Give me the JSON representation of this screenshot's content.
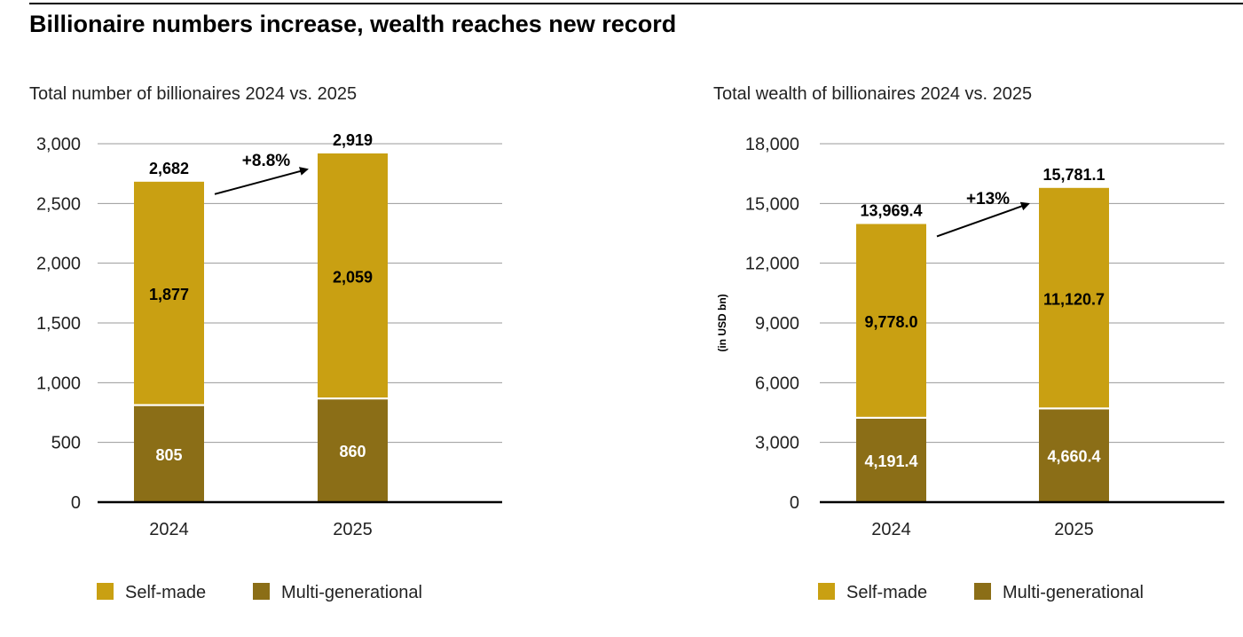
{
  "title": "Billionaire numbers increase, wealth reaches new record",
  "colors": {
    "self_made": "#C9A012",
    "multi_generational": "#8B6E17",
    "grid": "#9a9a9a"
  },
  "chart_data": [
    {
      "type": "bar",
      "stacked": true,
      "title": "Total number of billionaires 2024 vs. 2025",
      "xlabel": "",
      "ylabel": "",
      "categories": [
        "2024",
        "2025"
      ],
      "ylim": [
        0,
        3000
      ],
      "yticks": [
        0,
        500,
        1000,
        1500,
        2000,
        2500,
        3000
      ],
      "ytick_labels": [
        "0",
        "500",
        "1,000",
        "1,500",
        "2,000",
        "2,500",
        "3,000"
      ],
      "series": [
        {
          "name": "Multi-generational",
          "values": [
            805,
            860
          ],
          "labels": [
            "805",
            "860"
          ]
        },
        {
          "name": "Self-made",
          "values": [
            1877,
            2059
          ],
          "labels": [
            "1,877",
            "2,059"
          ]
        }
      ],
      "totals": [
        2682,
        2919
      ],
      "total_labels": [
        "2,682",
        "2,919"
      ],
      "growth_label": "+8.8%",
      "grid": true,
      "legend": "bottom",
      "legend_entries": [
        "Self-made",
        "Multi-generational"
      ]
    },
    {
      "type": "bar",
      "stacked": true,
      "title": "Total wealth of billionaires 2024 vs. 2025",
      "xlabel": "",
      "ylabel": "(in USD bn)",
      "categories": [
        "2024",
        "2025"
      ],
      "ylim": [
        0,
        18000
      ],
      "yticks": [
        0,
        3000,
        6000,
        9000,
        12000,
        15000,
        18000
      ],
      "ytick_labels": [
        "0",
        "3,000",
        "6,000",
        "9,000",
        "12,000",
        "15,000",
        "18,000"
      ],
      "series": [
        {
          "name": "Multi-generational",
          "values": [
            4191.4,
            4660.4
          ],
          "labels": [
            "4,191.4",
            "4,660.4"
          ]
        },
        {
          "name": "Self-made",
          "values": [
            9778.0,
            11120.7
          ],
          "labels": [
            "9,778.0",
            "11,120.7"
          ]
        }
      ],
      "totals": [
        13969.4,
        15781.1
      ],
      "total_labels": [
        "13,969.4",
        "15,781.1"
      ],
      "growth_label": "+13%",
      "grid": true,
      "legend": "bottom",
      "legend_entries": [
        "Self-made",
        "Multi-generational"
      ]
    }
  ]
}
